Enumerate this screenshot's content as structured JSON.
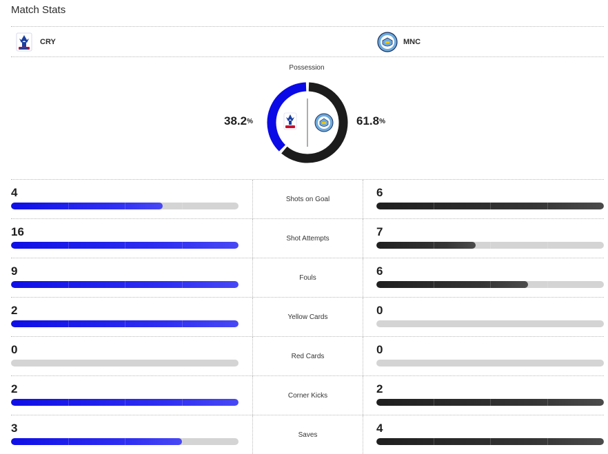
{
  "header": {
    "title": "Match Stats"
  },
  "teams": {
    "home": {
      "abbr": "CRY",
      "color": "#0a0ae6"
    },
    "away": {
      "abbr": "MNC",
      "color": "#1c1c1c"
    }
  },
  "possession": {
    "label": "Possession",
    "home_pct": 38.2,
    "away_pct": 61.8,
    "home_text": "38.2",
    "away_text": "61.8",
    "unit": "%"
  },
  "stats": [
    {
      "label": "Shots on Goal",
      "home": "4",
      "away": "6",
      "home_fill": 0.667,
      "away_fill": 1.0
    },
    {
      "label": "Shot Attempts",
      "home": "16",
      "away": "7",
      "home_fill": 1.0,
      "away_fill": 0.4375
    },
    {
      "label": "Fouls",
      "home": "9",
      "away": "6",
      "home_fill": 1.0,
      "away_fill": 0.667
    },
    {
      "label": "Yellow Cards",
      "home": "2",
      "away": "0",
      "home_fill": 1.0,
      "away_fill": 0.0
    },
    {
      "label": "Red Cards",
      "home": "0",
      "away": "0",
      "home_fill": 0.0,
      "away_fill": 0.0
    },
    {
      "label": "Corner Kicks",
      "home": "2",
      "away": "2",
      "home_fill": 1.0,
      "away_fill": 1.0
    },
    {
      "label": "Saves",
      "home": "3",
      "away": "4",
      "home_fill": 0.75,
      "away_fill": 1.0
    }
  ]
}
